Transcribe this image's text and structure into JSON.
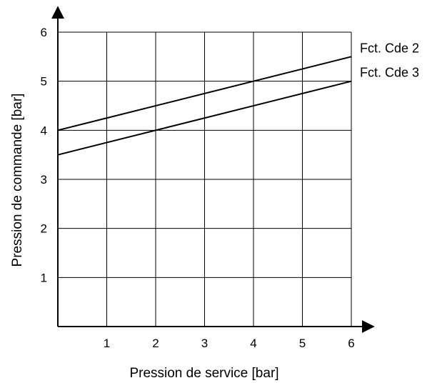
{
  "chart_data": {
    "type": "line",
    "title": "",
    "xlabel": "Pression de service [bar]",
    "ylabel": "Pression de commande [bar]",
    "xlim": [
      0,
      6
    ],
    "ylim": [
      0,
      6
    ],
    "x_ticks": [
      "1",
      "2",
      "3",
      "4",
      "5",
      "6"
    ],
    "y_ticks": [
      "1",
      "2",
      "3",
      "4",
      "5",
      "6"
    ],
    "grid": true,
    "series": [
      {
        "name": "Fct. Cde 2",
        "x": [
          0,
          6
        ],
        "values": [
          4.0,
          5.5
        ]
      },
      {
        "name": "Fct. Cde 3",
        "x": [
          0,
          6
        ],
        "values": [
          3.5,
          5.0
        ]
      }
    ]
  }
}
